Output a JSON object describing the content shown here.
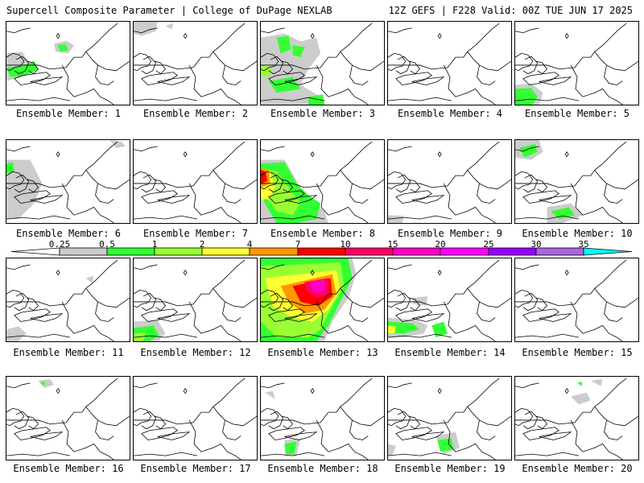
{
  "header": {
    "title_left": "Supercell Composite Parameter | College of DuPage NEXLAB",
    "title_right": "12Z GEFS | F228 Valid: 00Z TUE JUN 17 2025"
  },
  "legend": {
    "ticks": [
      "0.25",
      "0.5",
      "1",
      "2",
      "4",
      "7",
      "10",
      "15",
      "20",
      "25",
      "30",
      "35"
    ],
    "colors": [
      "#ffffff",
      "#cccccc",
      "#33ff33",
      "#99ff33",
      "#ffff33",
      "#ff9900",
      "#ff0000",
      "#ff0066",
      "#ff00cc",
      "#ff00ff",
      "#9900ff",
      "#aa66dd",
      "#00ffff"
    ]
  },
  "panels": [
    {
      "label": "Ensemble Member: 1"
    },
    {
      "label": "Ensemble Member: 2"
    },
    {
      "label": "Ensemble Member: 3"
    },
    {
      "label": "Ensemble Member: 4"
    },
    {
      "label": "Ensemble Member: 5"
    },
    {
      "label": "Ensemble Member: 6"
    },
    {
      "label": "Ensemble Member: 7"
    },
    {
      "label": "Ensemble Member: 8"
    },
    {
      "label": "Ensemble Member: 9"
    },
    {
      "label": "Ensemble Member: 10"
    },
    {
      "label": "Ensemble Member: 11"
    },
    {
      "label": "Ensemble Member: 12"
    },
    {
      "label": "Ensemble Member: 13"
    },
    {
      "label": "Ensemble Member: 14"
    },
    {
      "label": "Ensemble Member: 15"
    },
    {
      "label": "Ensemble Member: 16"
    },
    {
      "label": "Ensemble Member: 17"
    },
    {
      "label": "Ensemble Member: 18"
    },
    {
      "label": "Ensemble Member: 19"
    },
    {
      "label": "Ensemble Member: 20"
    }
  ]
}
